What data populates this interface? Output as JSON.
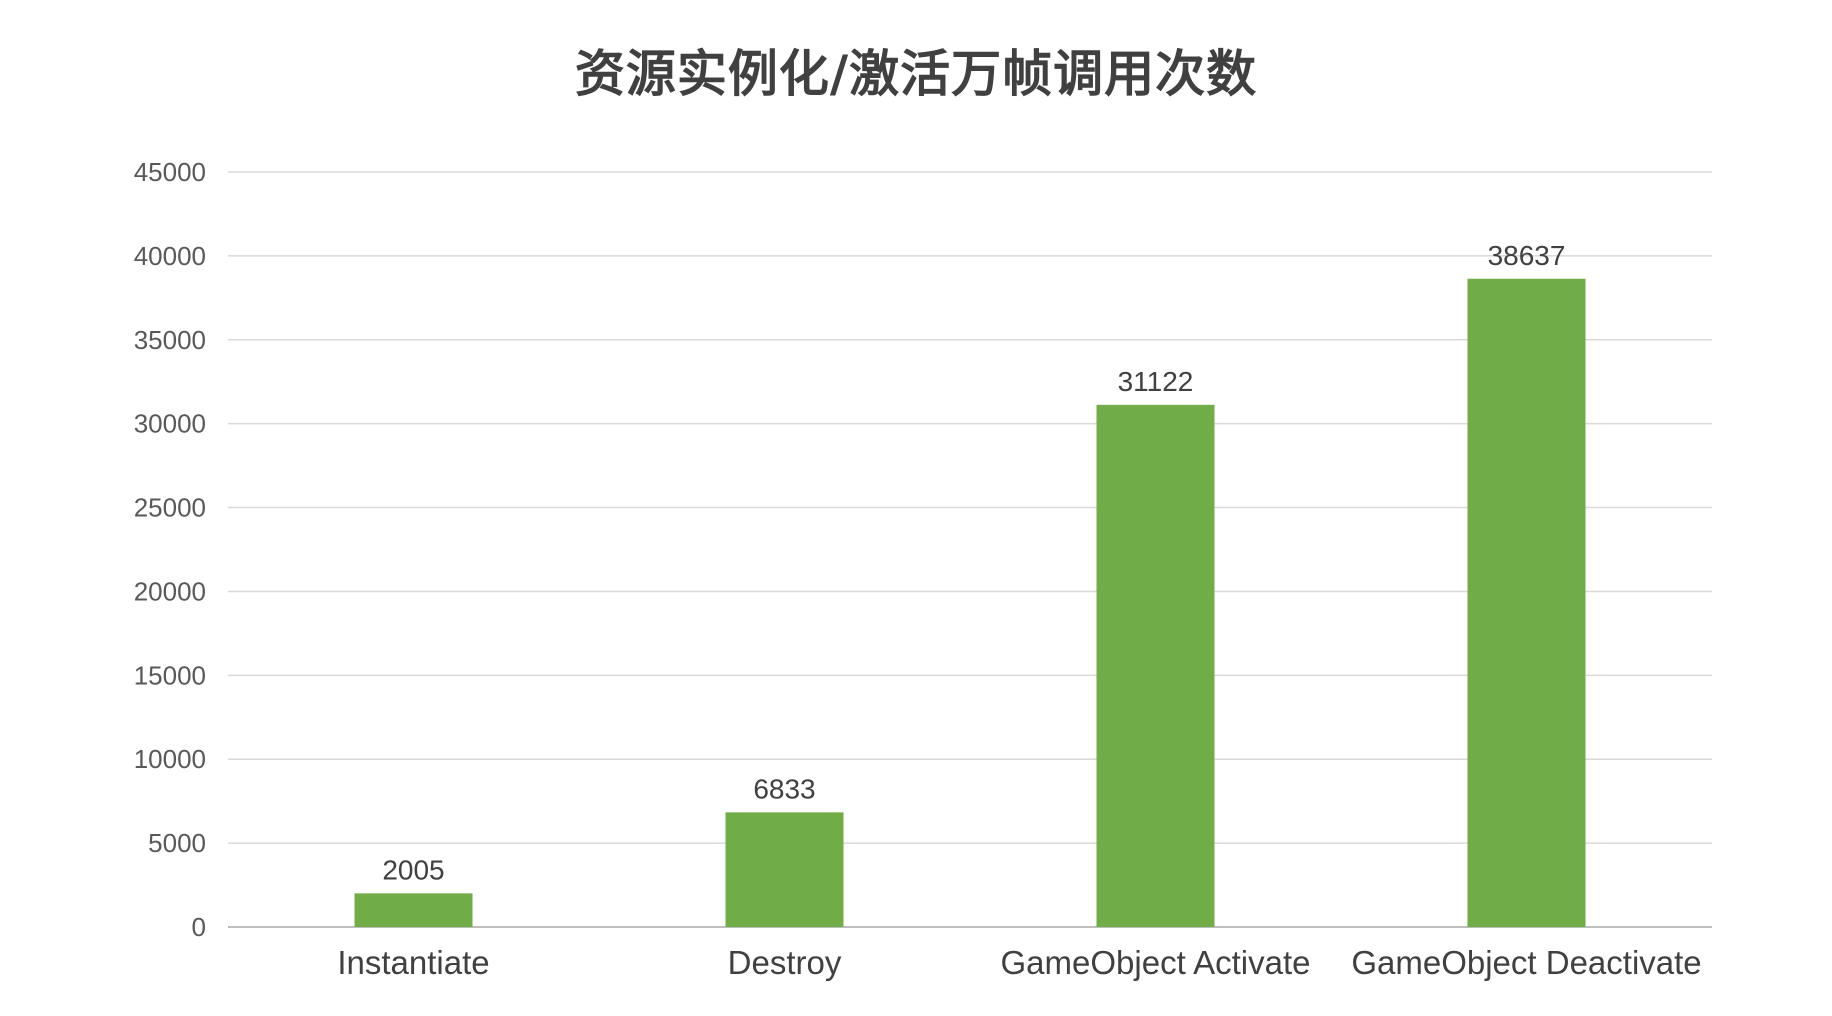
{
  "chart_data": {
    "type": "bar",
    "title": "资源实例化/激活万帧调用次数",
    "xlabel": "",
    "ylabel": "",
    "categories": [
      "Instantiate",
      "Destroy",
      "GameObject Activate",
      "GameObject Deactivate"
    ],
    "values": [
      2005,
      6833,
      31122,
      38637
    ],
    "data_labels": [
      "2005",
      "6833",
      "31122",
      "38637"
    ],
    "ylim": [
      0,
      45000
    ],
    "yticks": [
      0,
      5000,
      10000,
      15000,
      20000,
      25000,
      30000,
      35000,
      40000,
      45000
    ],
    "ytick_labels": [
      "0",
      "5000",
      "10000",
      "15000",
      "20000",
      "25000",
      "30000",
      "35000",
      "40000",
      "45000"
    ],
    "grid": true,
    "legend": "none",
    "bar_color": "#70ad47",
    "grid_color": "#d9d9d9"
  }
}
